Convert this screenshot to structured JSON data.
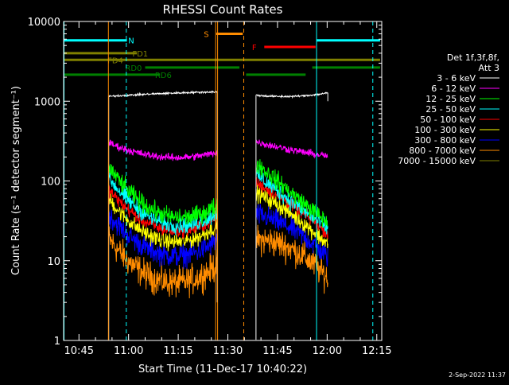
{
  "chart_data": {
    "type": "line",
    "title": "RHESSI Count Rates",
    "xlabel": "Start Time (11-Dec-17 10:40:22)",
    "ylabel": "Count Rate (s⁻¹ detector segment⁻¹)",
    "yscale": "log",
    "ylim": [
      1,
      10000
    ],
    "xlim_minutes": [
      40.37,
      136.5
    ],
    "x_unit": "minutes after 10:00 UT",
    "x_ticks": [
      {
        "value": 45,
        "label": "10:45"
      },
      {
        "value": 60,
        "label": "11:00"
      },
      {
        "value": 75,
        "label": "11:15"
      },
      {
        "value": 90,
        "label": "11:30"
      },
      {
        "value": 105,
        "label": "11:45"
      },
      {
        "value": 120,
        "label": "12:00"
      },
      {
        "value": 135,
        "label": "12:15"
      }
    ],
    "y_ticks": [
      {
        "value": 1,
        "label": "1"
      },
      {
        "value": 10,
        "label": "10"
      },
      {
        "value": 100,
        "label": "100"
      },
      {
        "value": 1000,
        "label": "1000"
      },
      {
        "value": 10000,
        "label": "10000"
      }
    ],
    "legend": {
      "header": [
        "Det 1f,3f,8f,",
        "Att 3"
      ],
      "position": "right"
    },
    "segments_minutes": [
      [
        54.0,
        86.8
      ],
      [
        98.5,
        120.2
      ]
    ],
    "series": [
      {
        "name": "3 - 6 keV",
        "color": "#ffffff",
        "start": [
          1150,
          1190
        ],
        "mid": [
          1250,
          1150
        ],
        "end": [
          1310,
          1270
        ],
        "noise": 0.01
      },
      {
        "name": "6 - 12 keV",
        "color": "#ff00ff",
        "start": [
          300,
          310
        ],
        "mid": [
          200,
          245
        ],
        "end": [
          230,
          205
        ],
        "noise": 0.04
      },
      {
        "name": "12 - 25 keV",
        "color": "#00ff00",
        "start": [
          150,
          170
        ],
        "mid": [
          38,
          70
        ],
        "end": [
          50,
          30
        ],
        "noise": 0.1
      },
      {
        "name": "25 - 50 keV",
        "color": "#00ffff",
        "start": [
          110,
          120
        ],
        "mid": [
          30,
          55
        ],
        "end": [
          40,
          25
        ],
        "noise": 0.09
      },
      {
        "name": "50 - 100 keV",
        "color": "#ff0000",
        "start": [
          78,
          95
        ],
        "mid": [
          25,
          50
        ],
        "end": [
          35,
          22
        ],
        "noise": 0.07
      },
      {
        "name": "100 - 300 keV",
        "color": "#ffff00",
        "start": [
          60,
          72
        ],
        "mid": [
          18,
          38
        ],
        "end": [
          28,
          16
        ],
        "noise": 0.09
      },
      {
        "name": "300 - 800 keV",
        "color": "#0000ff",
        "start": [
          38,
          38
        ],
        "mid": [
          12,
          25
        ],
        "end": [
          18,
          11
        ],
        "noise": 0.12
      },
      {
        "name": "800 - 7000 keV",
        "color": "#ff8c00",
        "start": [
          19,
          18
        ],
        "mid": [
          5.5,
          14
        ],
        "end": [
          9,
          6
        ],
        "noise": 0.16
      },
      {
        "name": "7000 - 15000 keV",
        "color": "#808000",
        "start": [
          1,
          1
        ],
        "mid": [
          1,
          1
        ],
        "end": [
          1,
          1
        ],
        "noise": 0,
        "hidden": true
      }
    ],
    "flag_bars": [
      {
        "label": "N",
        "color": "#00ffff",
        "y_level": 5800,
        "ranges": [
          [
            40.37,
            59.5
          ],
          [
            116.8,
            136.0
          ]
        ],
        "label_at": 60.8
      },
      {
        "label": "S",
        "color": "#ff8c00",
        "y_level": 7000,
        "ranges": [
          [
            86.5,
            94.5
          ]
        ],
        "label_at": 83.5
      },
      {
        "label": "F",
        "color": "#ff0000",
        "y_level": 4800,
        "ranges": [
          [
            101.0,
            116.5
          ]
        ],
        "label_at": 98.0
      },
      {
        "label": "FD1",
        "color": "#808000",
        "y_level": 4000,
        "ranges": [
          [
            40.37,
            62.5
          ]
        ],
        "label_at": 63.5
      },
      {
        "label": "FD4",
        "color": "#808000",
        "y_level": 3300,
        "ranges": [
          [
            40.37,
            136.0
          ]
        ],
        "label_at": 56.0
      },
      {
        "label": "RD0",
        "color": "#008000",
        "y_level": 2650,
        "ranges": [
          [
            65.0,
            93.5
          ],
          [
            115.5,
            136.0
          ]
        ],
        "label_at": 61.5
      },
      {
        "label": "RD6",
        "color": "#008000",
        "y_level": 2150,
        "ranges": [
          [
            40.37,
            69.5
          ],
          [
            95.5,
            113.5
          ]
        ],
        "label_at": 70.5
      }
    ],
    "vertical_lines": [
      {
        "x": 40.5,
        "color": "#00ffff",
        "style": "solid"
      },
      {
        "x": 59.3,
        "color": "#00ffff",
        "style": "dashed"
      },
      {
        "x": 116.8,
        "color": "#00ffff",
        "style": "solid"
      },
      {
        "x": 133.8,
        "color": "#00ffff",
        "style": "dashed"
      },
      {
        "x": 53.9,
        "color": "#ff8c00",
        "style": "solid"
      },
      {
        "x": 86.3,
        "color": "#ff8c00",
        "style": "solid"
      },
      {
        "x": 86.9,
        "color": "#ff8c00",
        "style": "solid"
      },
      {
        "x": 94.8,
        "color": "#ff8c00",
        "style": "dashed"
      }
    ]
  },
  "footer": {
    "timestamp": "2-Sep-2022 11:37"
  }
}
